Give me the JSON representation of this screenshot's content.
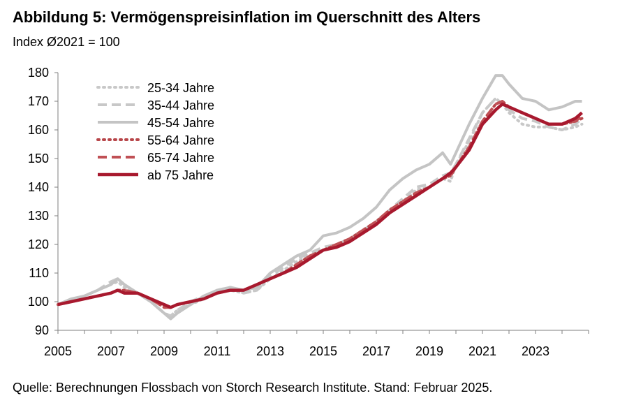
{
  "header": {
    "title": "Abbildung 5: Vermögenspreisinflation im Querschnitt des Alters",
    "subtitle": "Index Ø2021 = 100"
  },
  "footer": {
    "source": "Quelle: Berechnungen Flossbach von Storch Research Institute. Stand: Februar 2025."
  },
  "chart_data": {
    "type": "line",
    "title": "Abbildung 5: Vermögenspreisinflation im Querschnitt des Alters",
    "ylabel": "Index Ø2021 = 100",
    "xlabel": "",
    "xlim": [
      2005,
      2025
    ],
    "ylim": [
      90,
      180
    ],
    "yticks": [
      90,
      100,
      110,
      120,
      130,
      140,
      150,
      160,
      170,
      180
    ],
    "xticks": [
      "2005",
      "2007",
      "2009",
      "2011",
      "2013",
      "2015",
      "2017",
      "2019",
      "2021",
      "2023"
    ],
    "legend_position": "top-left",
    "x": [
      2005.0,
      2005.5,
      2006.0,
      2006.5,
      2007.0,
      2007.25,
      2007.5,
      2008.0,
      2008.5,
      2009.0,
      2009.25,
      2009.5,
      2010.0,
      2010.5,
      2011.0,
      2011.5,
      2012.0,
      2012.5,
      2013.0,
      2013.5,
      2014.0,
      2014.5,
      2015.0,
      2015.5,
      2016.0,
      2016.5,
      2017.0,
      2017.5,
      2018.0,
      2018.5,
      2019.0,
      2019.5,
      2019.8,
      2020.0,
      2020.5,
      2021.0,
      2021.5,
      2021.75,
      2022.0,
      2022.5,
      2023.0,
      2023.5,
      2024.0,
      2024.5,
      2024.75
    ],
    "series": [
      {
        "name": "25-34 Jahre",
        "color": "#c8c8c8",
        "style": "dotted",
        "values": [
          99,
          100,
          102,
          104,
          106,
          107,
          105,
          103,
          100,
          96,
          95,
          97,
          99,
          101,
          103,
          104,
          103,
          104,
          108,
          111,
          114,
          116,
          118,
          119,
          121,
          124,
          127,
          131,
          135,
          139,
          140,
          143,
          142,
          148,
          156,
          166,
          171,
          169,
          166,
          162,
          161,
          161,
          160,
          161,
          162
        ]
      },
      {
        "name": "35-44 Jahre",
        "color": "#c8c8c8",
        "style": "dashed",
        "values": [
          99,
          100,
          102,
          104,
          107,
          108,
          106,
          103,
          100,
          96,
          95,
          97,
          100,
          102,
          104,
          105,
          103,
          104,
          109,
          112,
          115,
          117,
          119,
          120,
          122,
          125,
          128,
          132,
          136,
          140,
          141,
          144,
          145,
          148,
          157,
          166,
          171,
          169,
          167,
          164,
          163,
          161,
          160,
          162,
          164
        ]
      },
      {
        "name": "45-54 Jahre",
        "color": "#c4c4c4",
        "style": "solid",
        "values": [
          99,
          101,
          102,
          104,
          106,
          108,
          106,
          103,
          100,
          96,
          94,
          96,
          99,
          102,
          104,
          105,
          104,
          105,
          110,
          113,
          116,
          118,
          123,
          124,
          126,
          129,
          133,
          139,
          143,
          146,
          148,
          152,
          148,
          152,
          162,
          171,
          179,
          179,
          176,
          171,
          170,
          167,
          168,
          170,
          170
        ]
      },
      {
        "name": "55-64 Jahre",
        "color": "#b8464a",
        "style": "dotted",
        "values": [
          99,
          100,
          101,
          102,
          103,
          104,
          104,
          103,
          101,
          98,
          98,
          99,
          100,
          101,
          103,
          104,
          104,
          106,
          108,
          110,
          113,
          116,
          118,
          120,
          122,
          125,
          128,
          132,
          135,
          138,
          140,
          143,
          144,
          147,
          154,
          163,
          169,
          170,
          168,
          166,
          164,
          162,
          162,
          163,
          164
        ]
      },
      {
        "name": "65-74 Jahre",
        "color": "#c05055",
        "style": "dashed",
        "values": [
          99,
          100,
          101,
          102,
          103,
          104,
          104,
          103,
          101,
          98,
          98,
          99,
          100,
          101,
          103,
          104,
          104,
          106,
          108,
          110,
          113,
          116,
          118,
          120,
          122,
          125,
          128,
          132,
          135,
          138,
          140,
          143,
          144,
          147,
          154,
          163,
          169,
          170,
          168,
          166,
          164,
          162,
          162,
          163,
          165
        ]
      },
      {
        "name": "ab 75 Jahre",
        "color": "#a8192e",
        "style": "solid",
        "values": [
          99,
          100,
          101,
          102,
          103,
          104,
          103,
          103,
          101,
          99,
          98,
          99,
          100,
          101,
          103,
          104,
          104,
          106,
          108,
          110,
          112,
          115,
          118,
          119,
          121,
          124,
          127,
          131,
          134,
          137,
          140,
          143,
          145,
          147,
          153,
          162,
          167,
          169,
          168,
          166,
          164,
          162,
          162,
          164,
          166
        ]
      }
    ]
  }
}
